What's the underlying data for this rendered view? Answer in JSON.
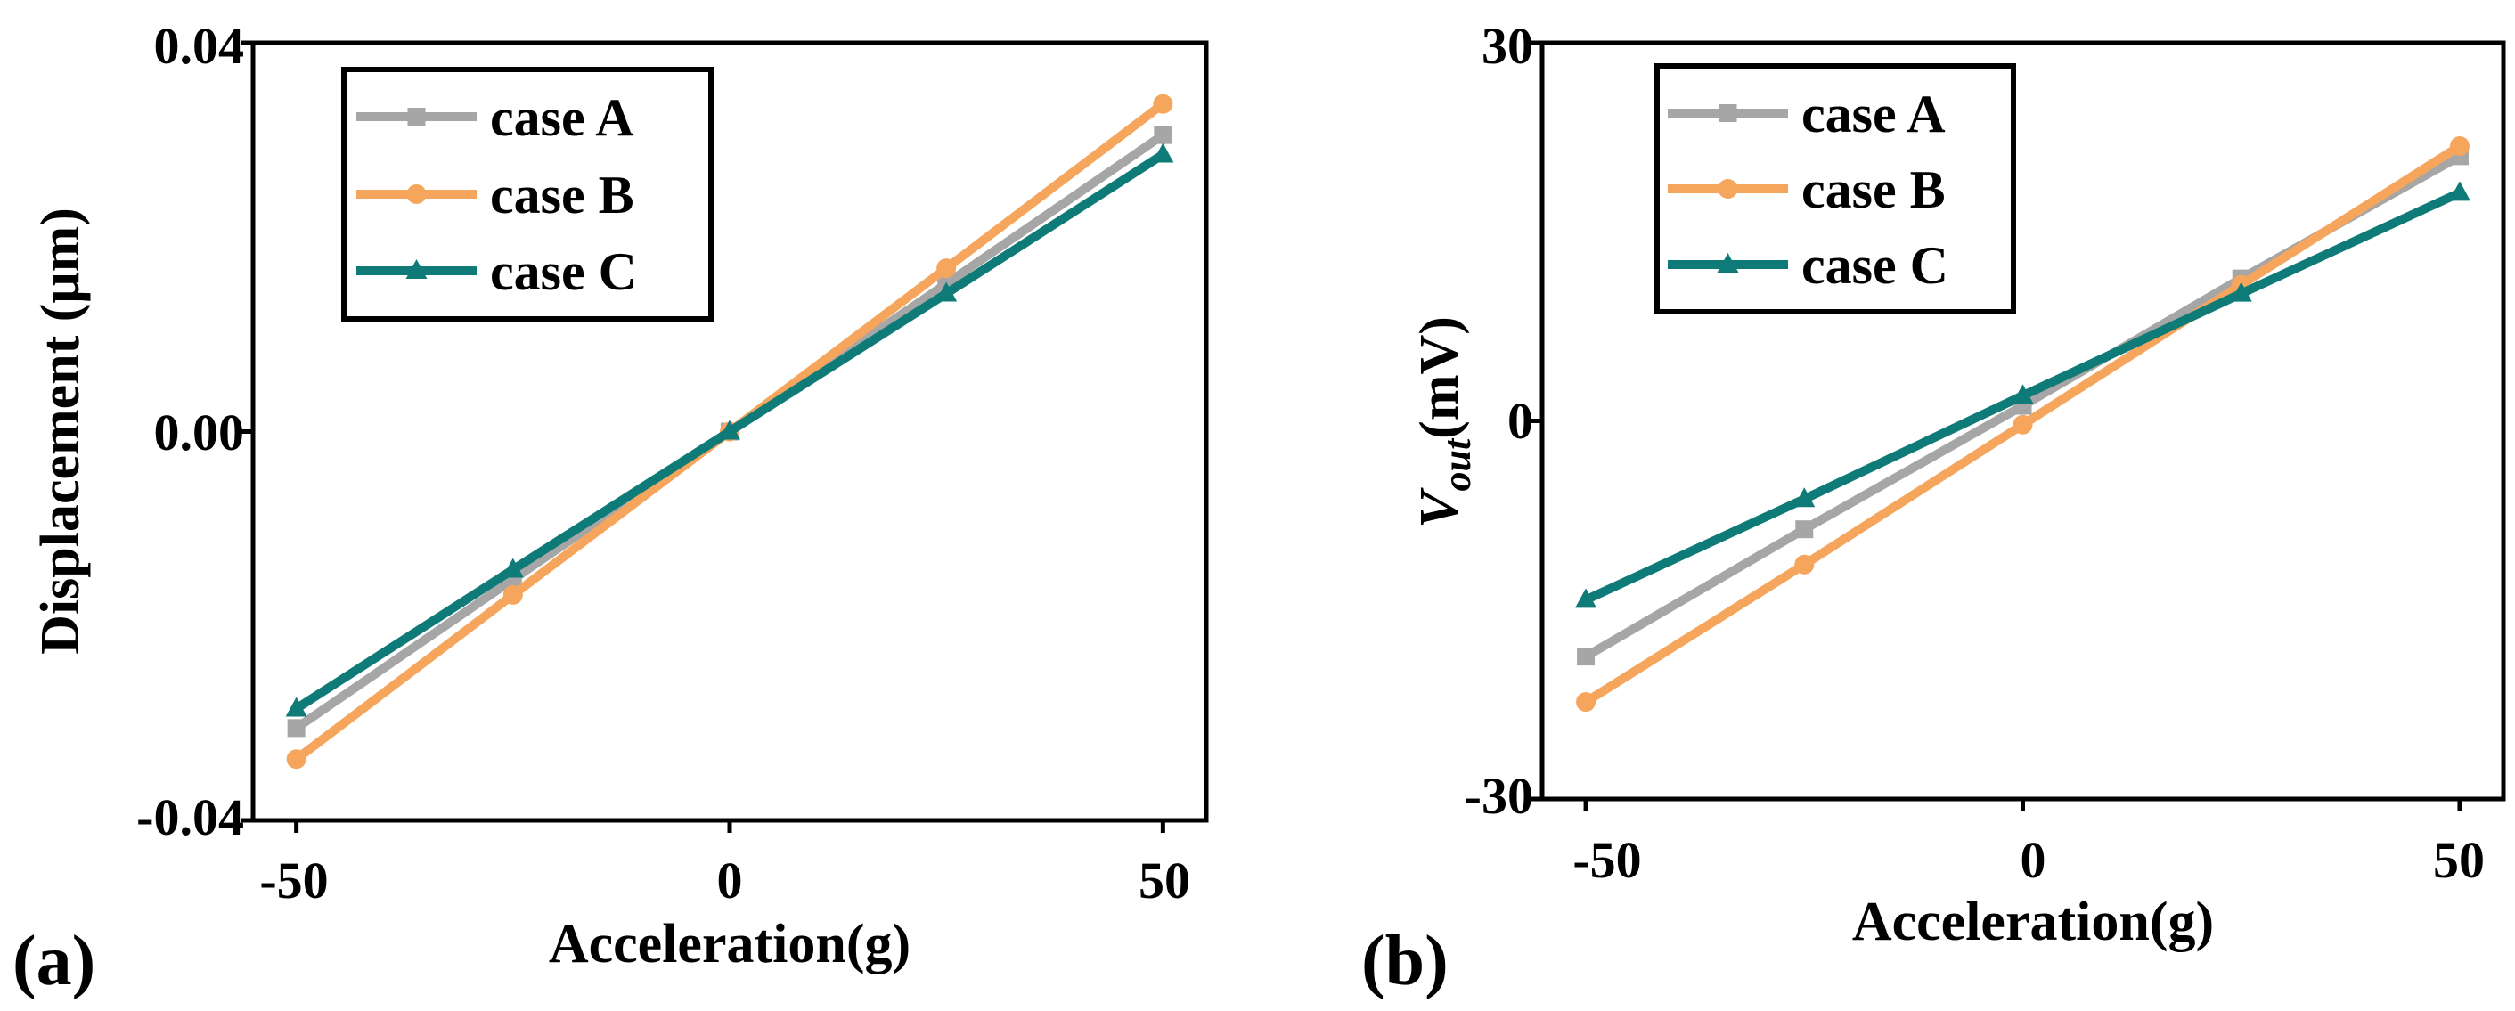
{
  "chart_data": [
    {
      "type": "line",
      "panel_label": "(a)",
      "xlabel": "Acceleration(g)",
      "ylabel": "Displacement (μm)",
      "xlim": [
        -55,
        55
      ],
      "ylim": [
        -0.04,
        0.04
      ],
      "xticks": [
        -50,
        0,
        50
      ],
      "xtick_labels": [
        "-50",
        "0",
        "50"
      ],
      "yticks": [
        -0.04,
        0.0,
        0.04
      ],
      "ytick_labels": [
        "-0.04",
        "0.00",
        "0.04"
      ],
      "x": [
        -50,
        -25,
        0,
        25,
        50
      ],
      "legend_position": "top-left",
      "series": [
        {
          "name": "case A",
          "color": "#a6a6a6",
          "marker": "square",
          "values": [
            -0.0305,
            -0.0152,
            0.0,
            0.0152,
            0.0305
          ]
        },
        {
          "name": "case B",
          "color": "#f5a55c",
          "marker": "circle",
          "values": [
            -0.0337,
            -0.0168,
            0.0,
            0.0168,
            0.0337
          ]
        },
        {
          "name": "case C",
          "color": "#0f7b78",
          "marker": "triangle",
          "values": [
            -0.0285,
            -0.0142,
            0.0,
            0.0142,
            0.0285
          ]
        }
      ]
    },
    {
      "type": "line",
      "panel_label": "(b)",
      "xlabel": "Acceleration(g)",
      "ylabel_main": "V",
      "ylabel_sub": "out",
      "ylabel_unit": "(mV)",
      "xlim": [
        -55,
        55
      ],
      "ylim": [
        -30,
        30
      ],
      "xticks": [
        -50,
        0,
        50
      ],
      "xtick_labels": [
        "-50",
        "0",
        "50"
      ],
      "yticks": [
        -30,
        0,
        30
      ],
      "ytick_labels": [
        "-30",
        "0",
        "30"
      ],
      "x": [
        -50,
        -25,
        0,
        25,
        50
      ],
      "legend_position": "top-left",
      "series": [
        {
          "name": "case A",
          "color": "#a6a6a6",
          "marker": "square",
          "values": [
            -18.7,
            -8.6,
            1.2,
            11.3,
            21.0
          ]
        },
        {
          "name": "case B",
          "color": "#f5a55c",
          "marker": "circle",
          "values": [
            -22.3,
            -11.4,
            -0.3,
            10.8,
            21.8
          ]
        },
        {
          "name": "case C",
          "color": "#0f7b78",
          "marker": "triangle",
          "values": [
            -14.2,
            -6.2,
            2.0,
            10.1,
            18.1
          ]
        }
      ]
    }
  ]
}
